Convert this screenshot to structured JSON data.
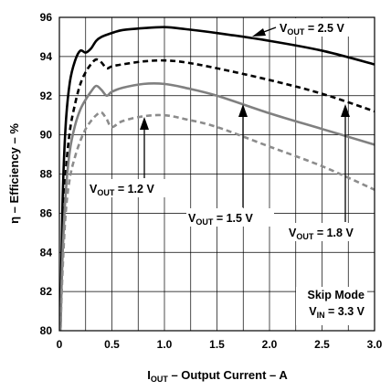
{
  "chart_data": {
    "type": "line",
    "xlabel": {
      "main": "I",
      "sub": "OUT",
      "rest": " – Output Current – A"
    },
    "ylabel": "η – Efficiency – %",
    "xlim": [
      0,
      3.0
    ],
    "ylim": [
      80,
      96
    ],
    "x_ticks": [
      "0",
      "0.5",
      "1.0",
      "1.5",
      "2.0",
      "2.5",
      "3.0"
    ],
    "x_tick_values": [
      0,
      0.5,
      1.0,
      1.5,
      2.0,
      2.5,
      3.0
    ],
    "y_ticks": [
      "80",
      "82",
      "84",
      "86",
      "88",
      "90",
      "92",
      "94",
      "96"
    ],
    "y_tick_values": [
      80,
      82,
      84,
      86,
      88,
      90,
      92,
      94,
      96
    ],
    "grid": true,
    "series": [
      {
        "name": "VOUT = 2.5 V",
        "color": "#000000",
        "dash": "solid",
        "x": [
          0.01,
          0.03,
          0.06,
          0.1,
          0.15,
          0.2,
          0.25,
          0.3,
          0.35,
          0.4,
          0.5,
          0.6,
          0.8,
          1.0,
          1.2,
          1.5,
          2.0,
          2.5,
          3.0
        ],
        "y": [
          80.0,
          86.5,
          90.5,
          92.7,
          93.8,
          94.3,
          94.2,
          94.4,
          94.8,
          95.0,
          95.2,
          95.35,
          95.45,
          95.5,
          95.4,
          95.2,
          94.8,
          94.3,
          93.6
        ]
      },
      {
        "name": "VOUT = 1.8 V",
        "color": "#000000",
        "dash": "dashed",
        "x": [
          0.01,
          0.03,
          0.06,
          0.1,
          0.15,
          0.2,
          0.25,
          0.3,
          0.35,
          0.4,
          0.45,
          0.5,
          0.6,
          0.8,
          1.0,
          1.2,
          1.5,
          2.0,
          2.5,
          3.0
        ],
        "y": [
          80.0,
          84.5,
          88.0,
          90.2,
          91.6,
          92.6,
          93.2,
          93.6,
          93.85,
          93.7,
          93.4,
          93.5,
          93.6,
          93.75,
          93.8,
          93.7,
          93.4,
          92.8,
          92.1,
          91.2
        ]
      },
      {
        "name": "VOUT = 1.5 V",
        "color": "#808080",
        "dash": "solid",
        "x": [
          0.01,
          0.03,
          0.06,
          0.1,
          0.15,
          0.2,
          0.25,
          0.3,
          0.35,
          0.4,
          0.45,
          0.5,
          0.6,
          0.8,
          1.0,
          1.2,
          1.5,
          2.0,
          2.5,
          3.0
        ],
        "y": [
          80.0,
          83.8,
          87.0,
          89.2,
          90.5,
          91.3,
          91.8,
          92.2,
          92.5,
          92.3,
          92.0,
          92.2,
          92.4,
          92.6,
          92.6,
          92.4,
          92.0,
          91.1,
          90.3,
          89.5
        ]
      },
      {
        "name": "VOUT = 1.2 V",
        "color": "#8c8c8c",
        "dash": "dashed",
        "x": [
          0.01,
          0.03,
          0.06,
          0.1,
          0.15,
          0.2,
          0.25,
          0.3,
          0.35,
          0.4,
          0.45,
          0.5,
          0.6,
          0.8,
          1.0,
          1.2,
          1.5,
          2.0,
          2.5,
          3.0
        ],
        "y": [
          80.0,
          83.0,
          86.0,
          87.8,
          88.9,
          89.7,
          90.3,
          90.7,
          91.0,
          91.15,
          90.8,
          90.4,
          90.7,
          90.95,
          91.0,
          90.8,
          90.4,
          89.4,
          88.4,
          87.2
        ]
      }
    ],
    "annotations": [
      {
        "main": "V",
        "sub": "OUT",
        "rest": " = 2.5 V"
      },
      {
        "main": "V",
        "sub": "OUT",
        "rest": " = 1.2 V"
      },
      {
        "main": "V",
        "sub": "OUT",
        "rest": " = 1.5 V"
      },
      {
        "main": "V",
        "sub": "OUT",
        "rest": " = 1.8 V"
      },
      {
        "text": "Skip Mode"
      },
      {
        "main": "V",
        "sub": "IN",
        "rest": " = 3.3 V"
      }
    ]
  }
}
